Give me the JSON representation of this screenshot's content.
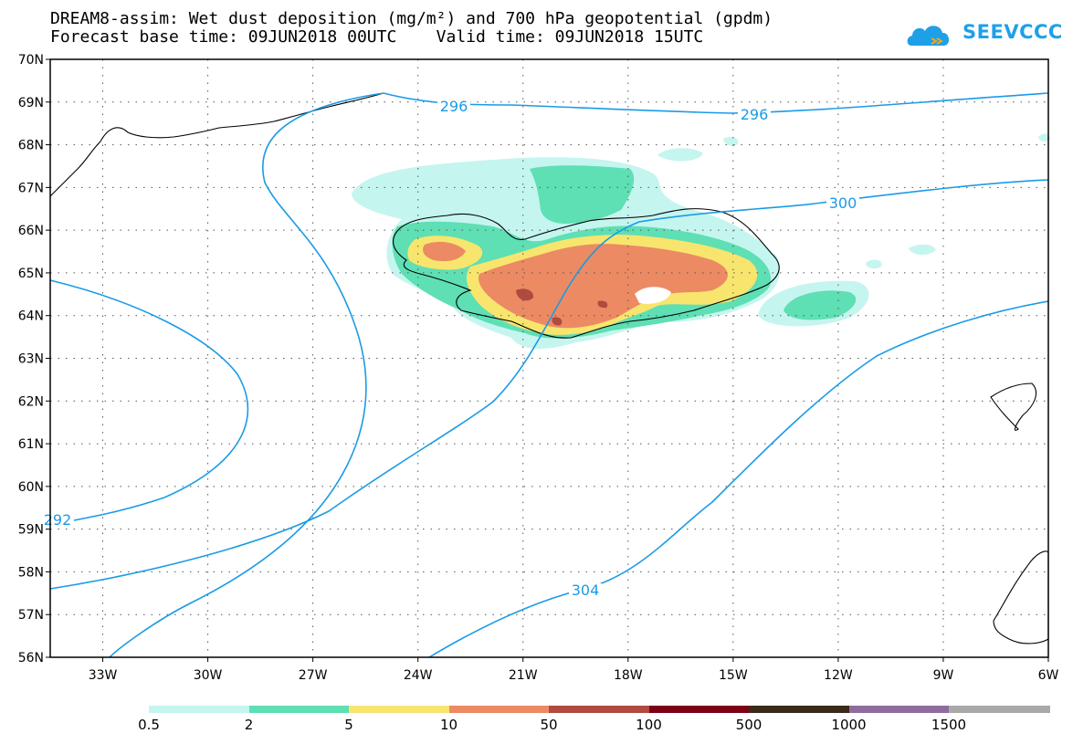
{
  "title_line1": "DREAM8-assim: Wet dust deposition (mg/m²) and 700 hPa geopotential (gpdm)",
  "title_line2": "Forecast base time: 09JUN2018 00UTC    Valid time: 09JUN2018 15UTC",
  "logo": {
    "text": "SEEVCCC",
    "icon": "cloud-logo-icon",
    "color": "#1ea0e8"
  },
  "map": {
    "lon_range": [
      -34.5,
      -6
    ],
    "lat_range": [
      56,
      70
    ],
    "lon_ticks": [
      "33W",
      "30W",
      "27W",
      "24W",
      "21W",
      "18W",
      "15W",
      "12W",
      "9W",
      "6W"
    ],
    "lat_ticks": [
      "70N",
      "69N",
      "68N",
      "67N",
      "66N",
      "65N",
      "64N",
      "63N",
      "62N",
      "61N",
      "60N",
      "59N",
      "58N",
      "57N",
      "56N"
    ],
    "gridlines": "dotted",
    "contour_color": "#1a9be6",
    "contour_labels": [
      "296",
      "296",
      "300",
      "304",
      "292"
    ]
  },
  "colorbar": {
    "colors": [
      "#c5f5ef",
      "#5edfb4",
      "#f8e56e",
      "#ec8a63",
      "#b04a3e",
      "#7b0018",
      "#3b2a18",
      "#8e6c9e",
      "#a9a9a9"
    ],
    "labels": [
      "0.5",
      "2",
      "5",
      "10",
      "50",
      "100",
      "500",
      "1000",
      "1500"
    ]
  }
}
